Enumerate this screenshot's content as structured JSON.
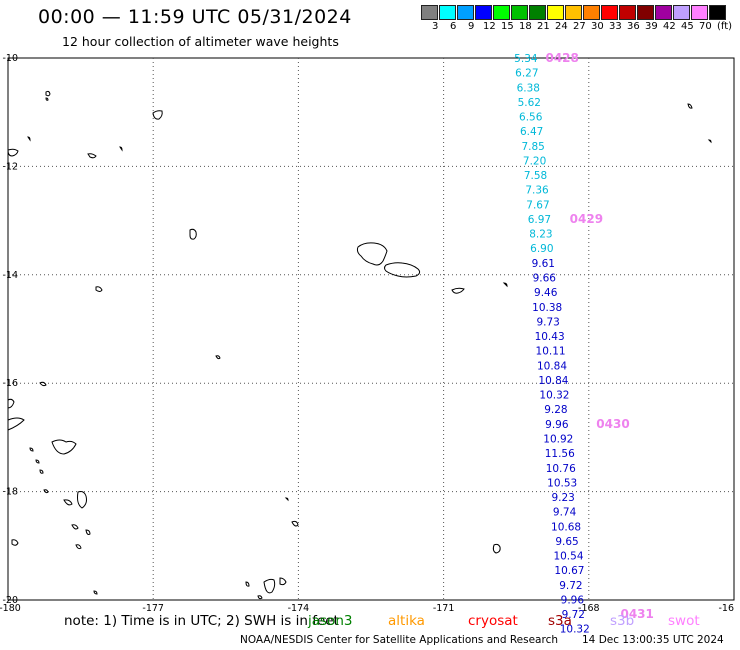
{
  "header": {
    "title": "00:00 — 11:59 UTC 05/31/2024",
    "subtitle": "12 hour collection of altimeter wave heights"
  },
  "color_scale": {
    "colors": [
      "#808080",
      "#00ffff",
      "#00a0ff",
      "#0000ff",
      "#00ff00",
      "#00c000",
      "#008000",
      "#ffff00",
      "#ffc000",
      "#ff8000",
      "#ff0000",
      "#c00000",
      "#800000",
      "#a000a0",
      "#c0a0ff",
      "#ff80ff",
      "#000000"
    ],
    "labels": [
      "3",
      "6",
      "9",
      "12",
      "15",
      "18",
      "21",
      "24",
      "27",
      "30",
      "33",
      "36",
      "39",
      "42",
      "45",
      "70",
      "(ft)"
    ]
  },
  "chart_data": {
    "type": "scatter",
    "xlim": [
      -180,
      -165
    ],
    "ylim": [
      -20,
      -10
    ],
    "x_ticks": [
      "-180",
      "-177",
      "-174",
      "-171",
      "-168",
      "-16"
    ],
    "y_ticks": [
      "-10",
      "-12",
      "-14",
      "-16",
      "-18",
      "-20"
    ],
    "grid": true,
    "swh_points": [
      {
        "lon": -169.3,
        "lat": -10.0,
        "swh": "5.34",
        "color": "#00b8d8"
      },
      {
        "lon": -169.28,
        "lat": -10.27,
        "swh": "6.27",
        "color": "#00b8d8"
      },
      {
        "lon": -169.25,
        "lat": -10.54,
        "swh": "6.38",
        "color": "#00b8d8"
      },
      {
        "lon": -169.23,
        "lat": -10.81,
        "swh": "5.62",
        "color": "#00b8d8"
      },
      {
        "lon": -169.2,
        "lat": -11.08,
        "swh": "6.56",
        "color": "#00b8d8"
      },
      {
        "lon": -169.18,
        "lat": -11.35,
        "swh": "6.47",
        "color": "#00b8d8"
      },
      {
        "lon": -169.15,
        "lat": -11.62,
        "swh": "7.85",
        "color": "#00b8d8"
      },
      {
        "lon": -169.12,
        "lat": -11.89,
        "swh": "7.20",
        "color": "#00b8d8"
      },
      {
        "lon": -169.1,
        "lat": -12.16,
        "swh": "7.58",
        "color": "#00b8d8"
      },
      {
        "lon": -169.07,
        "lat": -12.43,
        "swh": "7.36",
        "color": "#00b8d8"
      },
      {
        "lon": -169.05,
        "lat": -12.7,
        "swh": "7.67",
        "color": "#00b8d8"
      },
      {
        "lon": -169.02,
        "lat": -12.97,
        "swh": "6.97",
        "color": "#00b8d8"
      },
      {
        "lon": -168.99,
        "lat": -13.24,
        "swh": "8.23",
        "color": "#00b8d8"
      },
      {
        "lon": -168.97,
        "lat": -13.51,
        "swh": "6.90",
        "color": "#00b8d8"
      },
      {
        "lon": -168.94,
        "lat": -13.78,
        "swh": "9.61",
        "color": "#0000c8"
      },
      {
        "lon": -168.92,
        "lat": -14.05,
        "swh": "9.66",
        "color": "#0000c8"
      },
      {
        "lon": -168.89,
        "lat": -14.32,
        "swh": "9.46",
        "color": "#0000c8"
      },
      {
        "lon": -168.86,
        "lat": -14.59,
        "swh": "10.38",
        "color": "#0000c8"
      },
      {
        "lon": -168.84,
        "lat": -14.86,
        "swh": "9.73",
        "color": "#0000c8"
      },
      {
        "lon": -168.81,
        "lat": -15.13,
        "swh": "10.43",
        "color": "#0000c8"
      },
      {
        "lon": -168.79,
        "lat": -15.4,
        "swh": "10.11",
        "color": "#0000c8"
      },
      {
        "lon": -168.76,
        "lat": -15.67,
        "swh": "10.84",
        "color": "#0000c8"
      },
      {
        "lon": -168.73,
        "lat": -15.94,
        "swh": "10.84",
        "color": "#0000c8"
      },
      {
        "lon": -168.71,
        "lat": -16.21,
        "swh": "10.32",
        "color": "#0000c8"
      },
      {
        "lon": -168.68,
        "lat": -16.48,
        "swh": "9.28",
        "color": "#0000c8"
      },
      {
        "lon": -168.66,
        "lat": -16.75,
        "swh": "9.96",
        "color": "#0000c8"
      },
      {
        "lon": -168.63,
        "lat": -17.02,
        "swh": "10.92",
        "color": "#0000c8"
      },
      {
        "lon": -168.6,
        "lat": -17.29,
        "swh": "11.56",
        "color": "#0000c8"
      },
      {
        "lon": -168.58,
        "lat": -17.56,
        "swh": "10.76",
        "color": "#0000c8"
      },
      {
        "lon": -168.55,
        "lat": -17.83,
        "swh": "10.53",
        "color": "#0000c8"
      },
      {
        "lon": -168.53,
        "lat": -18.1,
        "swh": "9.23",
        "color": "#0000c8"
      },
      {
        "lon": -168.5,
        "lat": -18.37,
        "swh": "9.74",
        "color": "#0000c8"
      },
      {
        "lon": -168.47,
        "lat": -18.64,
        "swh": "10.68",
        "color": "#0000c8"
      },
      {
        "lon": -168.45,
        "lat": -18.91,
        "swh": "9.65",
        "color": "#0000c8"
      },
      {
        "lon": -168.42,
        "lat": -19.18,
        "swh": "10.54",
        "color": "#0000c8"
      },
      {
        "lon": -168.4,
        "lat": -19.45,
        "swh": "10.67",
        "color": "#0000c8"
      },
      {
        "lon": -168.37,
        "lat": -19.72,
        "swh": "9.72",
        "color": "#0000c8"
      },
      {
        "lon": -168.34,
        "lat": -19.99,
        "swh": "9.96",
        "color": "#0000c8"
      },
      {
        "lon": -168.32,
        "lat": -20.26,
        "swh": "9.72",
        "color": "#0000c8"
      },
      {
        "lon": -168.29,
        "lat": -20.53,
        "swh": "10.32",
        "color": "#0000c8"
      }
    ],
    "pass_labels": [
      {
        "text": "0428",
        "lon": -168.55,
        "lat": -10.0
      },
      {
        "text": "0429",
        "lon": -168.05,
        "lat": -12.97
      },
      {
        "text": "0430",
        "lon": -167.5,
        "lat": -16.75
      },
      {
        "text": "0431",
        "lon": -167.0,
        "lat": -20.26
      }
    ]
  },
  "footer": {
    "note": "note:  1) Time is in UTC;  2) SWH is in feet",
    "satellites": [
      {
        "name": "jason3",
        "color": "#008000"
      },
      {
        "name": "altika",
        "color": "#ff9900"
      },
      {
        "name": "cryosat",
        "color": "#ff0000"
      },
      {
        "name": "s3a",
        "color": "#a00000"
      },
      {
        "name": "s3b",
        "color": "#c0a0ff"
      },
      {
        "name": "swot",
        "color": "#ff80ff"
      }
    ],
    "credit": "NOAA/NESDIS Center for Satellite Applications and Research",
    "timestamp": "14 Dec 13:00:35 UTC 2024"
  }
}
